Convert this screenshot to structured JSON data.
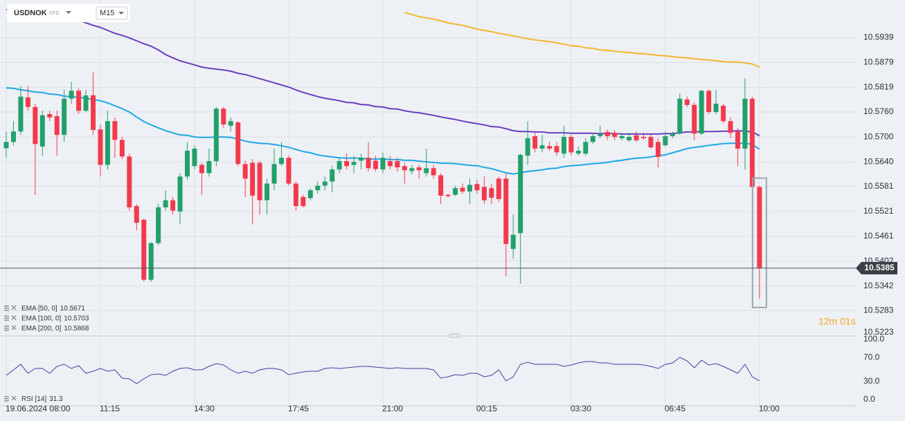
{
  "chart_data": {
    "type": "candlestick",
    "symbol": "USDNOK",
    "instrument_type": "CFD",
    "timeframe": "M15",
    "countdown": "12m 01s",
    "up_color": "#22a06b",
    "down_color": "#f23a4c",
    "grid": true,
    "categories": [
      "19.06.2024 08:00",
      null,
      null,
      null,
      null,
      null,
      null,
      null,
      null,
      null,
      null,
      null,
      null,
      "11:15",
      null,
      null,
      null,
      null,
      null,
      null,
      null,
      null,
      null,
      null,
      null,
      null,
      "14:30",
      null,
      null,
      null,
      null,
      null,
      null,
      null,
      null,
      null,
      null,
      null,
      null,
      "17:45",
      null,
      null,
      null,
      null,
      null,
      null,
      null,
      null,
      null,
      null,
      null,
      null,
      "21:00",
      null,
      null,
      null,
      null,
      null,
      null,
      null,
      null,
      null,
      null,
      null,
      null,
      "00:15",
      null,
      null,
      null,
      null,
      null,
      null,
      null,
      null,
      null,
      null,
      null,
      null,
      "03:30",
      null,
      null,
      null,
      null,
      null,
      null,
      null,
      null,
      null,
      null,
      null,
      null,
      "06:45",
      null,
      null,
      null,
      null,
      null,
      null,
      null,
      null,
      null,
      null,
      null,
      null,
      "10:00"
    ],
    "open": [
      10.5673,
      10.5688,
      10.5713,
      10.5795,
      10.5772,
      10.5677,
      10.5755,
      10.575,
      10.5705,
      10.5792,
      10.5811,
      10.5763,
      10.58,
      10.5718,
      10.5633,
      10.5738,
      10.5693,
      10.5653,
      10.5534,
      10.5501,
      10.5357,
      10.5445,
      10.5531,
      10.5548,
      10.5521,
      10.5605,
      10.563,
      10.5633,
      10.5613,
      10.5642,
      10.5768,
      10.5727,
      10.5735,
      10.5635,
      10.5638,
      10.5638,
      10.5548,
      10.5588,
      10.5635,
      10.565,
      10.5588,
      10.5556,
      10.5553,
      10.5572,
      10.5583,
      10.5593,
      10.5622,
      10.5642,
      10.5633,
      10.5643,
      10.565,
      10.5643,
      10.5622,
      10.5642,
      10.5642,
      10.563,
      10.5618,
      10.5627,
      10.5613,
      10.5625,
      10.5608,
      10.5561,
      10.5561,
      10.5578,
      10.5569,
      10.5587,
      10.558,
      10.5577,
      10.56,
      10.56,
      10.5431,
      10.5469,
      10.5655,
      10.5702,
      10.5672,
      10.5678,
      10.5678,
      10.566,
      10.57,
      10.566,
      10.566,
      10.5688,
      10.5702,
      10.5712,
      10.571,
      10.5697,
      10.5692,
      10.5704,
      10.57,
      10.57,
      10.5688,
      10.568,
      10.5702,
      10.5708,
      10.579,
      10.5777,
      10.5708,
      10.5811,
      10.576,
      10.5775,
      10.5738,
      10.5713,
      10.5672,
      10.5792,
      10.558
    ],
    "high": [
      10.5713,
      10.5738,
      10.5822,
      10.5822,
      10.578,
      10.5763,
      10.5763,
      10.5763,
      10.5813,
      10.5833,
      10.5817,
      10.5813,
      10.5855,
      10.573,
      10.5763,
      10.5747,
      10.57,
      10.566,
      10.5539,
      10.5504,
      10.5448,
      10.5539,
      10.5572,
      10.5556,
      10.5613,
      10.5688,
      10.568,
      10.5638,
      10.5672,
      10.5772,
      10.5772,
      10.5747,
      10.5738,
      10.5643,
      10.5647,
      10.5643,
      10.56,
      10.5672,
      10.5688,
      10.5655,
      10.5593,
      10.5561,
      10.5577,
      10.5593,
      10.5605,
      10.563,
      10.565,
      10.566,
      10.5655,
      10.566,
      10.5688,
      10.5655,
      10.5663,
      10.5655,
      10.565,
      10.5638,
      10.5633,
      10.5633,
      10.5672,
      10.5633,
      10.5613,
      10.5564,
      10.5583,
      10.5588,
      10.56,
      10.5597,
      10.5605,
      10.5588,
      10.5605,
      10.5613,
      10.5514,
      10.566,
      10.5738,
      10.5713,
      10.5705,
      10.5688,
      10.5688,
      10.5727,
      10.5705,
      10.5677,
      10.5697,
      10.571,
      10.5727,
      10.5718,
      10.5717,
      10.571,
      10.571,
      10.5713,
      10.571,
      10.5708,
      10.5697,
      10.5713,
      10.5713,
      10.5805,
      10.5797,
      10.5783,
      10.5813,
      10.5813,
      10.5813,
      10.578,
      10.5747,
      10.5722,
      10.5841,
      10.5797,
      10.5583
    ],
    "low": [
      10.565,
      10.568,
      10.5705,
      10.5763,
      10.5561,
      10.5655,
      10.5738,
      10.5655,
      10.5688,
      10.578,
      10.5755,
      10.576,
      10.5705,
      10.5605,
      10.5622,
      10.565,
      10.5647,
      10.5523,
      10.5476,
      10.5353,
      10.5352,
      10.544,
      10.5523,
      10.5514,
      10.549,
      10.5597,
      10.5622,
      10.5561,
      10.5605,
      10.563,
      10.5722,
      10.5713,
      10.563,
      10.5556,
      10.549,
      10.5514,
      10.5514,
      10.5572,
      10.563,
      10.5583,
      10.5523,
      10.5531,
      10.5548,
      10.5564,
      10.5572,
      10.5567,
      10.5613,
      10.5622,
      10.5613,
      10.5622,
      10.5617,
      10.5617,
      10.5613,
      10.5622,
      10.5617,
      10.5588,
      10.561,
      10.56,
      10.5605,
      10.56,
      10.5539,
      10.5554,
      10.5558,
      10.5564,
      10.5539,
      10.5564,
      10.5539,
      10.5539,
      10.5544,
      10.5365,
      10.5407,
      10.5348,
      10.5633,
      10.5663,
      10.5663,
      10.5667,
      10.5655,
      10.565,
      10.5655,
      10.5655,
      10.5655,
      10.5683,
      10.5697,
      10.5693,
      10.5692,
      10.5692,
      10.5688,
      10.5688,
      10.5693,
      10.5672,
      10.5627,
      10.5677,
      10.5697,
      10.5705,
      10.5772,
      10.5692,
      10.5705,
      10.5755,
      10.5755,
      10.5733,
      10.5697,
      10.563,
      10.5622,
      10.5577,
      10.5312
    ],
    "close": [
      10.5688,
      10.5713,
      10.5797,
      10.5772,
      10.5683,
      10.5752,
      10.5747,
      10.5705,
      10.5792,
      10.5811,
      10.5763,
      10.58,
      10.5717,
      10.5633,
      10.5738,
      10.5693,
      10.5653,
      10.5531,
      10.5494,
      10.5357,
      10.5445,
      10.5531,
      10.5548,
      10.5523,
      10.5605,
      10.5667,
      10.5672,
      10.5613,
      10.5642,
      10.5768,
      10.573,
      10.5738,
      10.5635,
      10.56,
      10.5559,
      10.5548,
      10.5588,
      10.5635,
      10.565,
      10.5588,
      10.5534,
      10.5534,
      10.5572,
      10.5583,
      10.5593,
      10.5622,
      10.5642,
      10.563,
      10.564,
      10.565,
      10.5625,
      10.5623,
      10.565,
      10.563,
      10.5627,
      10.562,
      10.5625,
      10.562,
      10.5625,
      10.5608,
      10.5559,
      10.5558,
      10.5577,
      10.5569,
      10.5585,
      10.5572,
      10.5548,
      10.5554,
      10.5551,
      10.5443,
      10.5465,
      10.5657,
      10.5697,
      10.5672,
      10.568,
      10.5672,
      10.5663,
      10.57,
      10.5663,
      10.5667,
      10.5688,
      10.5702,
      10.5708,
      10.5702,
      10.57,
      10.5702,
      10.57,
      10.5692,
      10.5697,
      10.5675,
      10.5652,
      10.5702,
      10.5708,
      10.5792,
      10.5777,
      10.5708,
      10.5811,
      10.576,
      10.578,
      10.5738,
      10.571,
      10.5672,
      10.5792,
      10.558,
      10.5385
    ],
    "series": [
      {
        "name": "EMA [50, 0]",
        "color": "#1ea7e6",
        "values": [
          10.5818,
          10.5817,
          10.5813,
          10.5811,
          10.5808,
          10.5807,
          10.5803,
          10.5802,
          10.5798,
          10.5797,
          10.5795,
          10.5793,
          10.579,
          10.5787,
          10.5782,
          10.5775,
          10.5768,
          10.576,
          10.5748,
          10.5737,
          10.5729,
          10.5722,
          10.5715,
          10.571,
          10.5705,
          10.5704,
          10.57,
          10.5699,
          10.5699,
          10.57,
          10.57,
          10.5699,
          10.5695,
          10.569,
          10.5687,
          10.5685,
          10.5684,
          10.5682,
          10.5679,
          10.5675,
          10.567,
          10.5665,
          10.5662,
          10.5657,
          10.5654,
          10.5652,
          10.565,
          10.5649,
          10.5649,
          10.5649,
          10.5647,
          10.5647,
          10.5647,
          10.5646,
          10.5646,
          10.5644,
          10.5644,
          10.5642,
          10.564,
          10.5639,
          10.5637,
          10.5637,
          10.5636,
          10.5634,
          10.5632,
          10.5631,
          10.5627,
          10.5624,
          10.5619,
          10.5614,
          10.5611,
          10.5614,
          10.5617,
          10.5619,
          10.5621,
          10.5624,
          10.5625,
          10.5629,
          10.5631,
          10.5632,
          10.5634,
          10.5636,
          10.5637,
          10.5639,
          10.5642,
          10.5644,
          10.5647,
          10.5649,
          10.565,
          10.5652,
          10.5655,
          10.5657,
          10.5662,
          10.5667,
          10.5672,
          10.5675,
          10.5677,
          10.568,
          10.5682,
          10.5684,
          10.5685,
          10.5685,
          10.5685,
          10.5682,
          10.5671
        ]
      },
      {
        "name": "EMA [100, 0]",
        "color": "#6a3cc0",
        "values": [
          10.6006,
          10.6004,
          10.6002,
          10.6001,
          10.5999,
          10.5997,
          10.5996,
          10.5994,
          10.5991,
          10.5988,
          10.5981,
          10.5974,
          10.5968,
          10.5963,
          10.5956,
          10.5949,
          10.5944,
          10.5938,
          10.5931,
          10.5924,
          10.5918,
          10.5909,
          10.5898,
          10.589,
          10.5883,
          10.5878,
          10.5873,
          10.5868,
          10.5865,
          10.5863,
          10.5861,
          10.5858,
          10.5853,
          10.585,
          10.5845,
          10.584,
          10.5835,
          10.583,
          10.5825,
          10.582,
          10.5813,
          10.5807,
          10.5802,
          10.5797,
          10.5793,
          10.579,
          10.5787,
          10.5783,
          10.5782,
          10.5778,
          10.5777,
          10.5773,
          10.5772,
          10.5768,
          10.5767,
          10.5763,
          10.576,
          10.5758,
          10.5755,
          10.5752,
          10.5748,
          10.5745,
          10.5742,
          10.5738,
          10.5735,
          10.5732,
          10.5729,
          10.5725,
          10.5724,
          10.572,
          10.5715,
          10.5713,
          10.5713,
          10.5712,
          10.5712,
          10.571,
          10.571,
          10.571,
          10.5709,
          10.5709,
          10.5709,
          10.5709,
          10.5708,
          10.5708,
          10.5708,
          10.5707,
          10.5707,
          10.5707,
          10.5707,
          10.5707,
          10.5707,
          10.5708,
          10.5708,
          10.571,
          10.5712,
          10.5712,
          10.5713,
          10.5713,
          10.5713,
          10.5714,
          10.5714,
          10.5715,
          10.5714,
          10.5712,
          10.5703
        ]
      },
      {
        "name": "EMA [200, 0]",
        "color": "#f5b52e",
        "values": [
          null,
          null,
          null,
          null,
          null,
          null,
          null,
          null,
          null,
          null,
          null,
          null,
          null,
          null,
          null,
          null,
          null,
          null,
          null,
          null,
          null,
          null,
          null,
          null,
          null,
          null,
          null,
          null,
          null,
          null,
          null,
          null,
          null,
          null,
          null,
          null,
          null,
          null,
          null,
          null,
          null,
          null,
          null,
          null,
          null,
          null,
          null,
          null,
          null,
          null,
          null,
          null,
          null,
          null,
          null,
          10.5999,
          10.5994,
          10.5989,
          10.5986,
          10.5983,
          10.5979,
          10.5974,
          10.5971,
          10.5968,
          10.5964,
          10.5959,
          10.5956,
          10.5953,
          10.5949,
          10.5946,
          10.5943,
          10.5939,
          10.5936,
          10.5933,
          10.5931,
          10.5929,
          10.5926,
          10.5923,
          10.5919,
          10.5918,
          10.5914,
          10.5913,
          10.5909,
          10.5908,
          10.5906,
          10.5904,
          10.5903,
          10.5901,
          10.59,
          10.5898,
          10.5896,
          10.5895,
          10.5893,
          10.5891,
          10.589,
          10.5888,
          10.5886,
          10.5885,
          10.5883,
          10.5881,
          10.588,
          10.588,
          10.5878,
          10.5875,
          10.5868
        ]
      }
    ],
    "ylim": [
      10.5222,
      10.6029
    ],
    "yticks": [
      10.5939,
      10.5879,
      10.5819,
      {
        "value": 10.576,
        "label": "10.5760"
      },
      {
        "value": 10.57,
        "label": "10.5700"
      },
      {
        "value": 10.564,
        "label": "10.5640"
      },
      10.5581,
      10.5521,
      10.5461,
      10.5402,
      10.5342,
      10.5283,
      10.5223
    ],
    "rsi": {
      "name": "RSI [14]",
      "color": "#3d41a3",
      "values": [
        40.2,
        49.4,
        58.6,
        43.7,
        51.7,
        51.7,
        43.7,
        55.2,
        58.6,
        51.7,
        56.3,
        43.7,
        47.1,
        51.7,
        47.1,
        49.4,
        35.6,
        34.5,
        26.4,
        34.5,
        41.4,
        42.5,
        40.2,
        47.1,
        51.7,
        52.9,
        49.4,
        49.4,
        55.2,
        59.8,
        57.5,
        49.4,
        43.7,
        47.1,
        43.7,
        49.4,
        51.7,
        51.7,
        49.4,
        41.4,
        43.7,
        46.0,
        47.1,
        47.1,
        51.7,
        52.9,
        51.7,
        52.9,
        54.0,
        55.2,
        55.2,
        54.0,
        52.9,
        51.7,
        52.9,
        51.7,
        51.7,
        51.7,
        51.7,
        49.4,
        35.6,
        37.9,
        41.4,
        40.2,
        43.7,
        43.7,
        37.9,
        40.2,
        49.4,
        31.0,
        37.9,
        58.6,
        62.1,
        58.6,
        58.6,
        58.6,
        58.6,
        55.2,
        57.5,
        60.9,
        63.2,
        63.2,
        60.9,
        60.9,
        58.6,
        58.6,
        58.6,
        58.6,
        57.5,
        55.2,
        51.7,
        58.6,
        60.9,
        70.1,
        64.4,
        52.9,
        65.5,
        57.5,
        59.8,
        55.2,
        49.4,
        43.7,
        58.6,
        37.9,
        31.3
      ],
      "ylim": [
        0,
        100
      ],
      "yticks": [
        {
          "value": 100,
          "label": "100.0"
        },
        {
          "value": 70,
          "label": "70.0"
        },
        {
          "value": 30,
          "label": "30.0"
        },
        {
          "value": 0,
          "label": "0.0"
        }
      ]
    }
  }
}
